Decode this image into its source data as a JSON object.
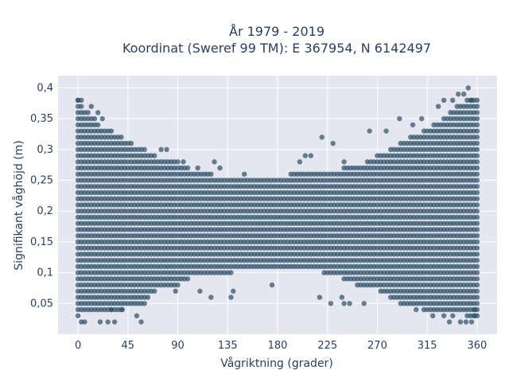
{
  "chart_data": {
    "type": "scatter",
    "title_line1": "År 1979 - 2019",
    "title_line2": "Koordinat (Sweref 99 TM): E 367954, N 6142497",
    "xlabel": "Vågriktning (grader)",
    "ylabel": "Signifikant våghöjd (m)",
    "xlim": [
      -18,
      378
    ],
    "ylim": [
      0.0,
      0.42
    ],
    "x_ticks": [
      0,
      45,
      90,
      135,
      180,
      225,
      270,
      315,
      360
    ],
    "x_tick_labels": [
      "0",
      "45",
      "90",
      "135",
      "180",
      "225",
      "270",
      "315",
      "360"
    ],
    "y_ticks": [
      0.05,
      0.1,
      0.15,
      0.2,
      0.25,
      0.3,
      0.35,
      0.4
    ],
    "y_tick_labels": [
      "0,05",
      "0,1",
      "0,15",
      "0,2",
      "0,25",
      "0,3",
      "0,35",
      "0,4"
    ],
    "grid": true,
    "marker_color": "#2f5268",
    "plot_bg": "#e5e6f0",
    "x_step_deg": 3,
    "y_step_m": 0.01,
    "band_envelope": {
      "x": [
        0,
        10,
        20,
        30,
        40,
        50,
        60,
        70,
        80,
        90,
        100,
        110,
        120,
        130,
        140,
        150,
        160,
        170,
        180,
        190,
        200,
        210,
        220,
        230,
        240,
        250,
        260,
        270,
        280,
        290,
        300,
        310,
        320,
        330,
        340,
        350,
        360
      ],
      "y_min": [
        0.03,
        0.04,
        0.04,
        0.04,
        0.04,
        0.05,
        0.05,
        0.07,
        0.07,
        0.08,
        0.09,
        0.1,
        0.1,
        0.1,
        0.1,
        0.11,
        0.11,
        0.11,
        0.11,
        0.11,
        0.11,
        0.11,
        0.1,
        0.1,
        0.09,
        0.08,
        0.07,
        0.07,
        0.06,
        0.05,
        0.05,
        0.04,
        0.04,
        0.04,
        0.04,
        0.03,
        0.03
      ],
      "y_max": [
        0.38,
        0.36,
        0.34,
        0.33,
        0.32,
        0.31,
        0.3,
        0.29,
        0.28,
        0.28,
        0.27,
        0.26,
        0.26,
        0.25,
        0.25,
        0.25,
        0.25,
        0.25,
        0.25,
        0.26,
        0.26,
        0.26,
        0.26,
        0.26,
        0.27,
        0.27,
        0.28,
        0.29,
        0.3,
        0.31,
        0.32,
        0.33,
        0.34,
        0.35,
        0.37,
        0.38,
        0.38
      ]
    },
    "outliers": [
      {
        "x": 0,
        "y": 0.38
      },
      {
        "x": 3,
        "y": 0.38
      },
      {
        "x": 12,
        "y": 0.37
      },
      {
        "x": 18,
        "y": 0.36
      },
      {
        "x": 22,
        "y": 0.35
      },
      {
        "x": 3,
        "y": 0.02
      },
      {
        "x": 6,
        "y": 0.02
      },
      {
        "x": 20,
        "y": 0.02
      },
      {
        "x": 27,
        "y": 0.02
      },
      {
        "x": 33,
        "y": 0.02
      },
      {
        "x": 57,
        "y": 0.02
      },
      {
        "x": 53,
        "y": 0.03
      },
      {
        "x": 30,
        "y": 0.04
      },
      {
        "x": 40,
        "y": 0.04
      },
      {
        "x": 75,
        "y": 0.3
      },
      {
        "x": 80,
        "y": 0.3
      },
      {
        "x": 95,
        "y": 0.28
      },
      {
        "x": 108,
        "y": 0.27
      },
      {
        "x": 123,
        "y": 0.28
      },
      {
        "x": 128,
        "y": 0.27
      },
      {
        "x": 150,
        "y": 0.26
      },
      {
        "x": 88,
        "y": 0.07
      },
      {
        "x": 110,
        "y": 0.07
      },
      {
        "x": 120,
        "y": 0.06
      },
      {
        "x": 140,
        "y": 0.07
      },
      {
        "x": 138,
        "y": 0.06
      },
      {
        "x": 175,
        "y": 0.08
      },
      {
        "x": 200,
        "y": 0.28
      },
      {
        "x": 205,
        "y": 0.29
      },
      {
        "x": 210,
        "y": 0.29
      },
      {
        "x": 220,
        "y": 0.32
      },
      {
        "x": 230,
        "y": 0.31
      },
      {
        "x": 240,
        "y": 0.28
      },
      {
        "x": 218,
        "y": 0.06
      },
      {
        "x": 228,
        "y": 0.05
      },
      {
        "x": 238,
        "y": 0.06
      },
      {
        "x": 240,
        "y": 0.05
      },
      {
        "x": 245,
        "y": 0.05
      },
      {
        "x": 258,
        "y": 0.05
      },
      {
        "x": 263,
        "y": 0.33
      },
      {
        "x": 278,
        "y": 0.33
      },
      {
        "x": 290,
        "y": 0.35
      },
      {
        "x": 302,
        "y": 0.34
      },
      {
        "x": 310,
        "y": 0.35
      },
      {
        "x": 325,
        "y": 0.37
      },
      {
        "x": 330,
        "y": 0.38
      },
      {
        "x": 338,
        "y": 0.38
      },
      {
        "x": 343,
        "y": 0.39
      },
      {
        "x": 348,
        "y": 0.39
      },
      {
        "x": 352,
        "y": 0.4
      },
      {
        "x": 355,
        "y": 0.38
      },
      {
        "x": 305,
        "y": 0.04
      },
      {
        "x": 320,
        "y": 0.03
      },
      {
        "x": 330,
        "y": 0.03
      },
      {
        "x": 335,
        "y": 0.02
      },
      {
        "x": 338,
        "y": 0.03
      },
      {
        "x": 345,
        "y": 0.02
      },
      {
        "x": 350,
        "y": 0.02
      },
      {
        "x": 355,
        "y": 0.02
      },
      {
        "x": 358,
        "y": 0.03
      },
      {
        "x": 358,
        "y": 0.04
      }
    ]
  }
}
